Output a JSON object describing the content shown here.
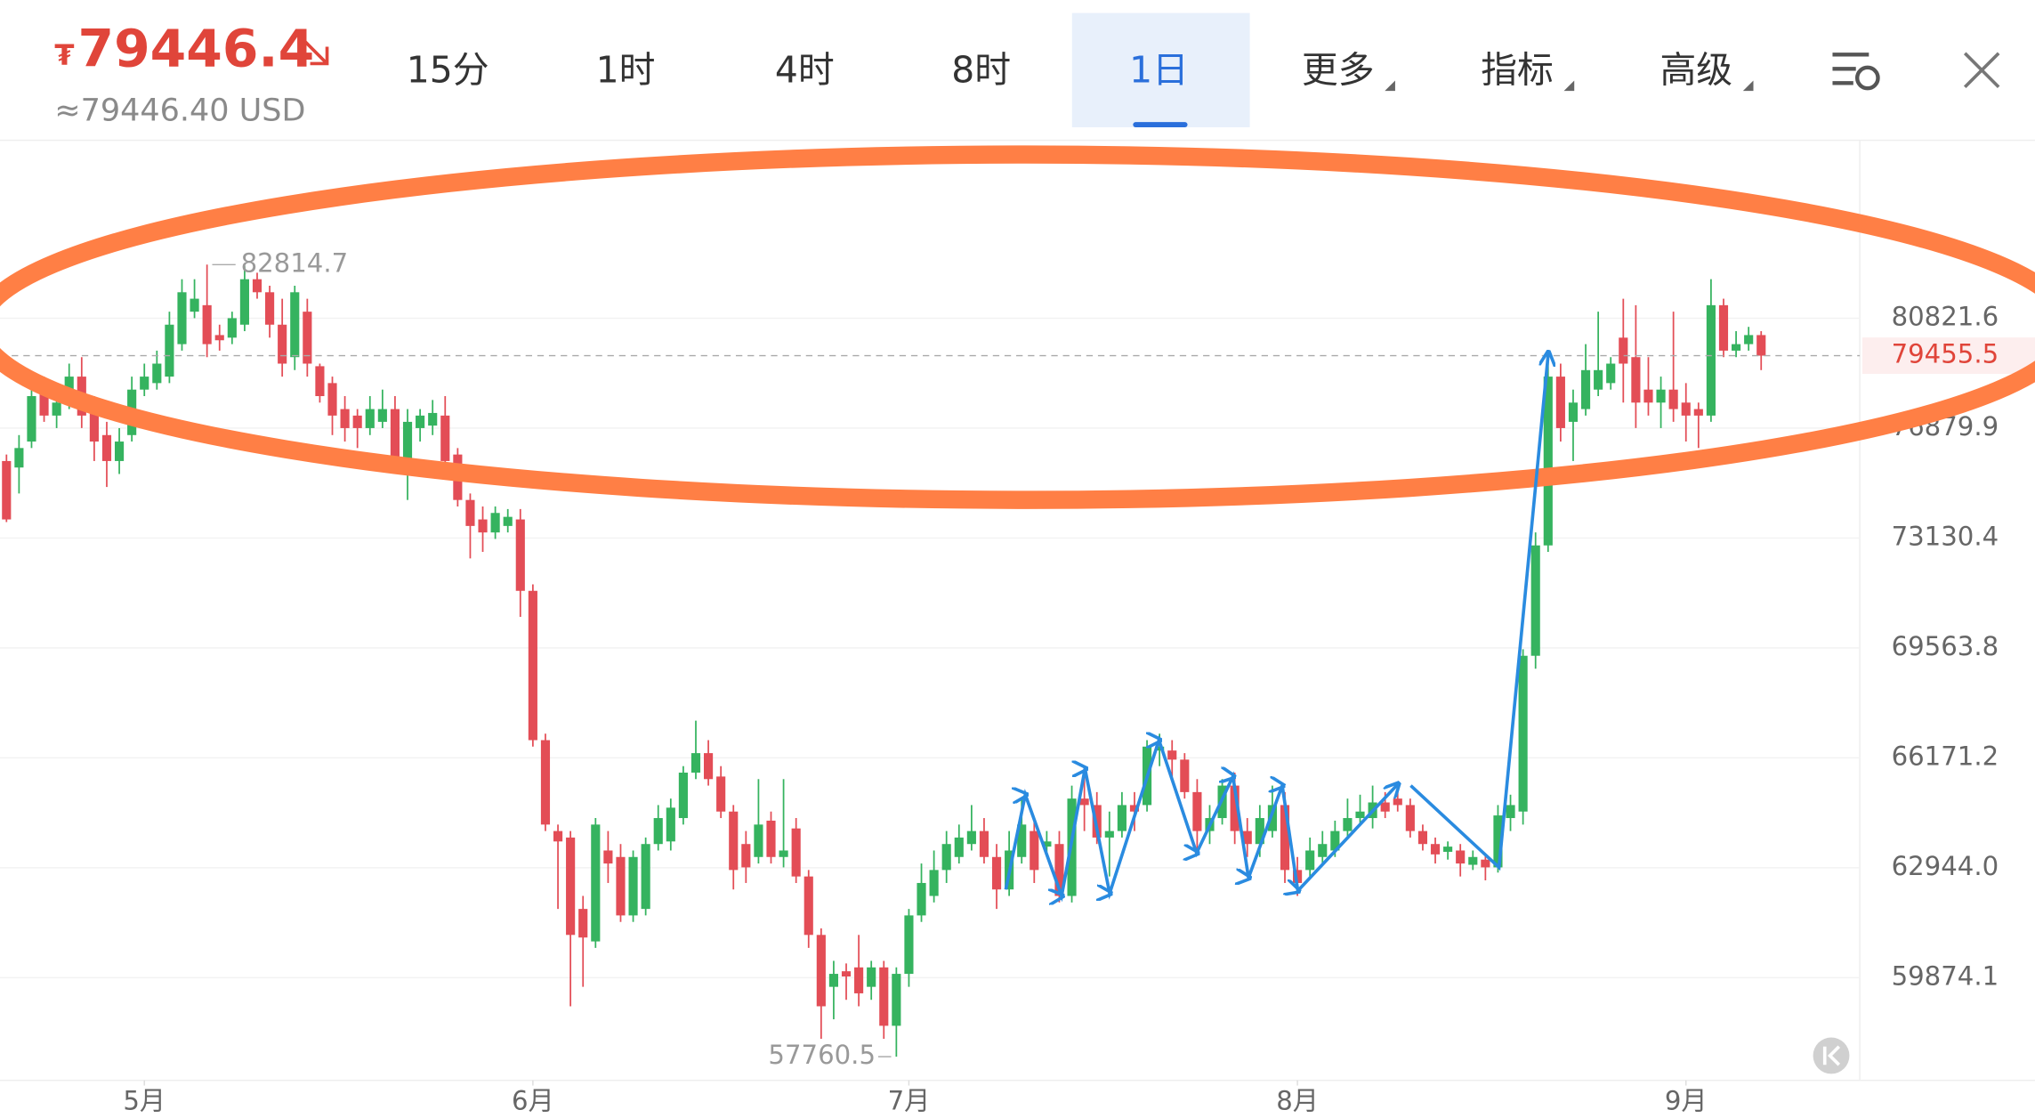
{
  "header": {
    "currency_symbol": "₮",
    "price": "79446.4",
    "converted": "≈79446.40 USD",
    "tabs": [
      "15分",
      "1时",
      "4时",
      "8时",
      "1日",
      "更多",
      "指标",
      "高级"
    ]
  },
  "chart_data": {
    "type": "candlestick",
    "log_scale": true,
    "grid": true,
    "last_price_line": true,
    "up_color": "#35b35f",
    "down_color": "#e34d56",
    "ylim": [
      57142,
      87636
    ],
    "yticks": [
      59874.1,
      {
        "value": 62944,
        "label": "62944.0"
      },
      66171.2,
      69563.8,
      73130.4,
      76879.9,
      80821.6
    ],
    "categories": [
      null,
      null,
      null,
      null,
      null,
      null,
      null,
      null,
      null,
      null,
      null,
      "5月",
      null,
      null,
      null,
      null,
      null,
      null,
      null,
      null,
      null,
      null,
      null,
      null,
      null,
      null,
      null,
      null,
      null,
      null,
      null,
      null,
      null,
      null,
      null,
      null,
      null,
      null,
      null,
      null,
      null,
      null,
      "6月",
      null,
      null,
      null,
      null,
      null,
      null,
      null,
      null,
      null,
      null,
      null,
      null,
      null,
      null,
      null,
      null,
      null,
      null,
      null,
      null,
      null,
      null,
      null,
      null,
      null,
      null,
      null,
      null,
      null,
      "7月",
      null,
      null,
      null,
      null,
      null,
      null,
      null,
      null,
      null,
      null,
      null,
      null,
      null,
      null,
      null,
      null,
      null,
      null,
      null,
      null,
      null,
      null,
      null,
      null,
      null,
      null,
      null,
      null,
      null,
      null,
      "8月",
      null,
      null,
      null,
      null,
      null,
      null,
      null,
      null,
      null,
      null,
      null,
      null,
      null,
      null,
      null,
      null,
      null,
      null,
      null,
      null,
      null,
      null,
      null,
      null,
      null,
      null,
      null,
      null,
      null,
      null,
      "9月",
      null,
      null,
      null,
      null,
      null,
      null
    ],
    "open": [
      75737,
      75514,
      76411,
      78238,
      77319,
      77777,
      78702,
      77548,
      76636,
      75737,
      76636,
      78238,
      78470,
      78702,
      79873,
      81061,
      81301,
      80203,
      80109,
      80583,
      82267,
      81781,
      80583,
      79402,
      81061,
      79075,
      78470,
      77548,
      77319,
      76880,
      77099,
      77548,
      75737,
      76880,
      76967,
      77319,
      75961,
      74407,
      73751,
      73316,
      73533,
      73751,
      71394,
      66706,
      64004,
      63815,
      61776,
      60870,
      63440,
      63253,
      61594,
      61776,
      63627,
      63702,
      64383,
      65728,
      66313,
      65611,
      64574,
      63627,
      63253,
      64307,
      63253,
      64080,
      62695,
      61050,
      59625,
      60049,
      60155,
      59625,
      60155,
      58578,
      59978,
      61594,
      62142,
      62880,
      63253,
      63627,
      64004,
      63253,
      62326,
      63253,
      64004,
      63552,
      63627,
      62142,
      64956,
      64765,
      63815,
      64004,
      64765,
      64765,
      66392,
      66392,
      66118,
      65148,
      64004,
      64383,
      65341,
      64004,
      63627,
      64004,
      64765,
      62880,
      62880,
      63253,
      63440,
      64004,
      64383,
      64383,
      64842,
      64956,
      64765,
      64004,
      63627,
      63402,
      63440,
      63029,
      63178,
      62955,
      64383,
      64574,
      69316,
      72885,
      78702,
      77099,
      77548,
      78238,
      78470,
      80109,
      79402,
      78238,
      77777,
      78238,
      77777,
      77548,
      77319,
      81301,
      79637,
      79873,
      80203
    ],
    "high": [
      75961,
      76636,
      78470,
      78702,
      78238,
      79168,
      79402,
      78007,
      77099,
      76880,
      78702,
      79168,
      79637,
      81061,
      82267,
      82267,
      82814.7,
      80583,
      81061,
      82755,
      82510,
      82024,
      81541,
      82024,
      81541,
      79168,
      78702,
      78007,
      77548,
      78007,
      78238,
      78007,
      77548,
      77548,
      77869,
      78007,
      76186,
      74627,
      74187,
      74187,
      74100,
      74100,
      71605,
      66903,
      64193,
      64004,
      62142,
      64383,
      64004,
      63627,
      63440,
      63815,
      64765,
      64956,
      65922,
      67300,
      66706,
      65922,
      64765,
      64004,
      65534,
      64574,
      65534,
      64383,
      62880,
      61231,
      60334,
      60263,
      61050,
      60334,
      60334,
      60155,
      61776,
      63066,
      63440,
      64004,
      64193,
      64765,
      64383,
      63627,
      64004,
      64956,
      64383,
      64004,
      64004,
      65341,
      65922,
      65148,
      64574,
      65148,
      65148,
      66706,
      66903,
      66706,
      66313,
      65534,
      64765,
      65534,
      65728,
      64383,
      64765,
      65341,
      65148,
      63253,
      63815,
      64004,
      64307,
      64956,
      65071,
      65341,
      65148,
      65341,
      64956,
      64193,
      63815,
      63702,
      63627,
      63440,
      63328,
      64765,
      65071,
      69521,
      73316,
      79637,
      79168,
      78238,
      79873,
      81061,
      79402,
      81541,
      81301,
      79402,
      78702,
      81061,
      78470,
      77777,
      82267,
      81541,
      80346,
      80503,
      80346
    ],
    "low": [
      73664,
      74627,
      76186,
      77099,
      76880,
      77548,
      76880,
      75737,
      74848,
      75291,
      76411,
      78007,
      78238,
      78470,
      79637,
      80822,
      79402,
      79637,
      79873,
      80346,
      81541,
      80109,
      78702,
      78935,
      78702,
      77777,
      76636,
      76411,
      76186,
      76636,
      76880,
      75514,
      74407,
      76411,
      76636,
      75514,
      74187,
      72455,
      72670,
      73100,
      73316,
      70555,
      66510,
      64004,
      61776,
      59100,
      59625,
      60691,
      62510,
      61412,
      61412,
      61594,
      63440,
      63440,
      64193,
      65534,
      65341,
      64383,
      62326,
      62510,
      63066,
      63066,
      62955,
      62510,
      60691,
      58233,
      58751,
      59274,
      59100,
      59274,
      58233,
      57760.5,
      59625,
      61412,
      61959,
      62510,
      63066,
      63440,
      63066,
      61776,
      62142,
      63066,
      62510,
      63402,
      61959,
      61959,
      64004,
      63627,
      62695,
      63815,
      64004,
      64574,
      65922,
      65534,
      64956,
      63440,
      63627,
      64193,
      63627,
      63253,
      63253,
      63815,
      62510,
      62142,
      62695,
      63066,
      63253,
      63815,
      64193,
      64080,
      64383,
      64574,
      63815,
      63440,
      63066,
      63178,
      62695,
      62880,
      62584,
      62806,
      64004,
      64193,
      68908,
      72670,
      76411,
      75737,
      77319,
      78007,
      78238,
      77777,
      76880,
      77319,
      76880,
      77099,
      76411,
      76186,
      77099,
      79402,
      79402,
      79637,
      78935
    ],
    "close": [
      73751,
      76186,
      78007,
      77319,
      77777,
      78702,
      77319,
      76411,
      75737,
      76411,
      78238,
      78702,
      79168,
      80583,
      81781,
      81541,
      79873,
      80014,
      80822,
      82267,
      81781,
      80583,
      79168,
      81781,
      79168,
      78007,
      77319,
      76880,
      76880,
      77548,
      77548,
      75737,
      77099,
      77319,
      77411,
      75737,
      74407,
      73533,
      73316,
      73969,
      73838,
      71394,
      66706,
      64193,
      63702,
      61050,
      60978,
      64193,
      63066,
      61594,
      63253,
      63627,
      64383,
      64688,
      65728,
      66313,
      65534,
      64574,
      62880,
      62955,
      64193,
      63253,
      63440,
      62695,
      61050,
      59100,
      59978,
      59907,
      59449,
      60155,
      58578,
      59978,
      61594,
      62510,
      62880,
      63627,
      63815,
      64004,
      63253,
      62326,
      63440,
      64193,
      62880,
      63702,
      62142,
      64956,
      64765,
      63815,
      64004,
      64765,
      64574,
      66510,
      66510,
      66118,
      65148,
      64004,
      64383,
      65341,
      64004,
      63627,
      64383,
      64765,
      62880,
      62510,
      63440,
      63627,
      64004,
      64383,
      64574,
      64842,
      64574,
      64765,
      64004,
      63627,
      63328,
      63552,
      63066,
      63253,
      62955,
      64460,
      64765,
      69316,
      72885,
      78702,
      76880,
      77777,
      78935,
      78935,
      79168,
      79168,
      77777,
      77777,
      78238,
      77548,
      77319,
      77319,
      81301,
      79637,
      79873,
      80203,
      79455.5
    ]
  }
}
